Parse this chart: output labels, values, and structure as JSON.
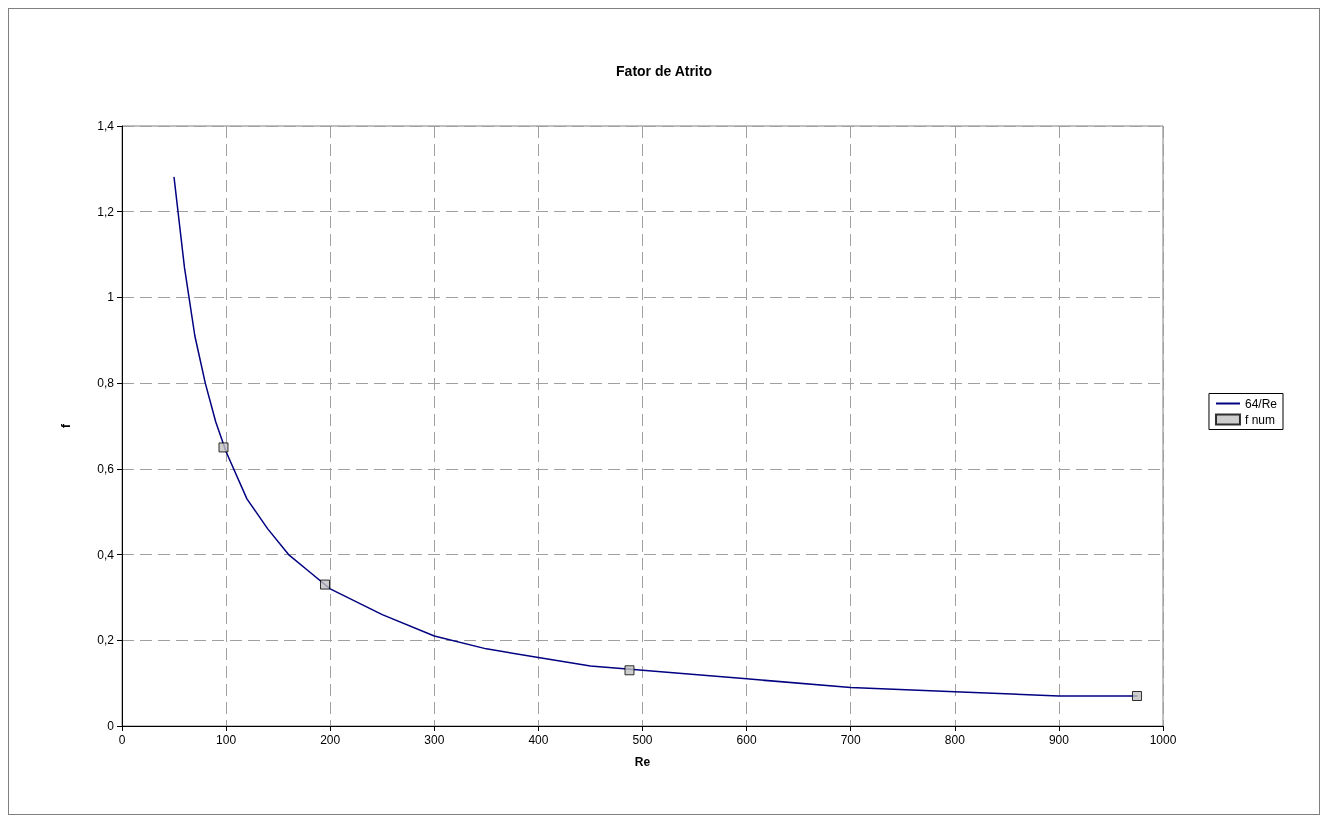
{
  "chart_data": {
    "type": "line",
    "title": "Fator de Atrito",
    "xlabel": "Re",
    "ylabel": "f",
    "xlim": [
      0,
      1000
    ],
    "xticks": [
      0,
      100,
      200,
      300,
      400,
      500,
      600,
      700,
      800,
      900,
      1000
    ],
    "ylim": [
      0,
      1.4
    ],
    "yticks": [
      0,
      {
        "value": 0.2,
        "label": "0,2"
      },
      {
        "value": 0.4,
        "label": "0,4"
      },
      {
        "value": 0.6,
        "label": "0,6"
      },
      {
        "value": 0.8,
        "label": "0,8"
      },
      1,
      {
        "value": 1.2,
        "label": "1,2"
      },
      {
        "value": 1.4,
        "label": "1,4"
      }
    ],
    "grid": true,
    "legend": "right",
    "line_style": "solid",
    "series": [
      {
        "name": "64/Re",
        "marker": "none",
        "color": "#000080",
        "x": [
          50,
          60,
          70,
          80,
          90,
          100,
          120,
          140,
          160,
          180,
          200,
          250,
          300,
          350,
          400,
          450,
          500,
          600,
          700,
          800,
          900,
          975
        ],
        "values": [
          1.28,
          1.07,
          0.91,
          0.8,
          0.71,
          0.64,
          0.53,
          0.46,
          0.4,
          0.36,
          0.32,
          0.26,
          0.21,
          0.18,
          0.16,
          0.14,
          0.13,
          0.11,
          0.09,
          0.08,
          0.07,
          0.07
        ]
      },
      {
        "name": "f num",
        "type": "scatter",
        "marker": "square",
        "color": "#c0c0c0",
        "x": [
          97.5,
          195,
          487.5,
          975
        ],
        "values": [
          0.65,
          0.33,
          0.13,
          0.07
        ]
      }
    ]
  }
}
